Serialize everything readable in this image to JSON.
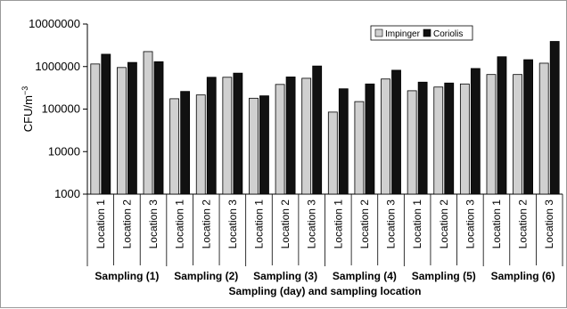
{
  "chart_data": {
    "type": "bar",
    "y_scale": "log",
    "ylabel": "CFU/m",
    "ylabel_superscript": "−3",
    "xlabel": "Sampling (day) and sampling location",
    "ylim": [
      1000,
      10000000
    ],
    "y_ticks": [
      "1000",
      "10000",
      "100000",
      "1000000",
      "10000000"
    ],
    "legend_position": "top-right",
    "categories": [
      "Location 1",
      "Location 2",
      "Location 3",
      "Location 1",
      "Location 2",
      "Location 3",
      "Location 1",
      "Location 2",
      "Location 3",
      "Location 1",
      "Location 2",
      "Location 3",
      "Location 1",
      "Location 2",
      "Location 3",
      "Location 1",
      "Location 2",
      "Location 3"
    ],
    "groups": [
      "Sampling (1)",
      "Sampling (2)",
      "Sampling (3)",
      "Sampling (4)",
      "Sampling (5)",
      "Sampling (6)"
    ],
    "series": [
      {
        "name": "Impinger",
        "color": "#d0d0d0",
        "values": [
          1150000,
          950000,
          2250000,
          175000,
          215000,
          560000,
          180000,
          380000,
          530000,
          85000,
          150000,
          510000,
          270000,
          330000,
          390000,
          650000,
          650000,
          1200000
        ]
      },
      {
        "name": "Coriolis",
        "color": "#111111",
        "values": [
          1950000,
          1250000,
          1300000,
          260000,
          560000,
          700000,
          205000,
          570000,
          1030000,
          300000,
          390000,
          820000,
          430000,
          410000,
          900000,
          1700000,
          1450000,
          3900000
        ]
      }
    ]
  }
}
